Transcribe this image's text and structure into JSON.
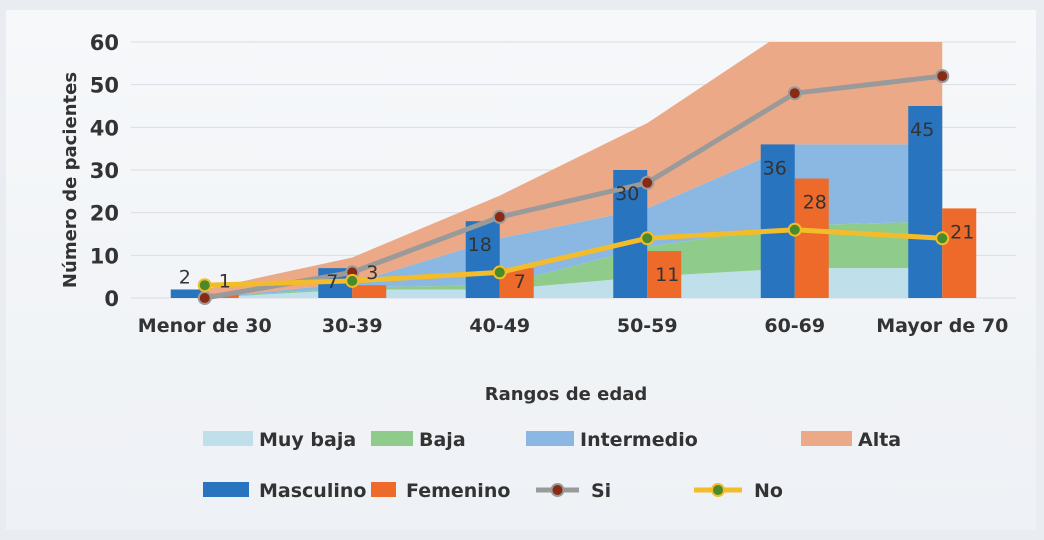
{
  "chart_data": {
    "type": "bar",
    "categories": [
      "Menor de 30",
      "30-39",
      "40-49",
      "50-59",
      "60-69",
      "Mayor de 70"
    ],
    "xlabel": "Rangos de edad",
    "ylabel": "Número de pacientes",
    "ylim": [
      0,
      60
    ],
    "yticks": [
      0,
      10,
      20,
      30,
      40,
      50,
      60
    ],
    "grid": true,
    "legend_position": "bottom",
    "area_series": [
      {
        "name": "Muy baja",
        "values": [
          0,
          2,
          2,
          5,
          7,
          7
        ],
        "color": "#bfe0ea"
      },
      {
        "name": "Baja",
        "values": [
          0,
          0.5,
          1,
          7,
          10,
          11
        ],
        "color": "#8fcc8c"
      },
      {
        "name": "Intermedio",
        "values": [
          0,
          1,
          11,
          9,
          19,
          18
        ],
        "color": "#8ab8e2"
      },
      {
        "name": "Alta",
        "values": [
          2,
          6,
          10,
          20,
          28,
          29
        ],
        "color": "#eba988"
      }
    ],
    "bar_series": [
      {
        "name": "Masculino",
        "values": [
          2,
          7,
          18,
          30,
          36,
          45
        ],
        "labels": [
          "2",
          "7",
          "18",
          "30",
          "36",
          "45"
        ],
        "color": "#2874bf"
      },
      {
        "name": "Femenino",
        "values": [
          1,
          3,
          7,
          11,
          28,
          21
        ],
        "labels": [
          "1",
          "3",
          "7",
          "11",
          "28",
          "21"
        ],
        "color": "#ee6a2a"
      }
    ],
    "line_series": [
      {
        "name": "Si",
        "values": [
          0,
          6,
          19,
          27,
          48,
          52
        ],
        "color": "#9a9a9a",
        "marker": "#8b2a14"
      },
      {
        "name": "No",
        "values": [
          3,
          4,
          6,
          14,
          16,
          14
        ],
        "color": "#f2bc2a",
        "marker": "#4a8a2a"
      }
    ]
  }
}
